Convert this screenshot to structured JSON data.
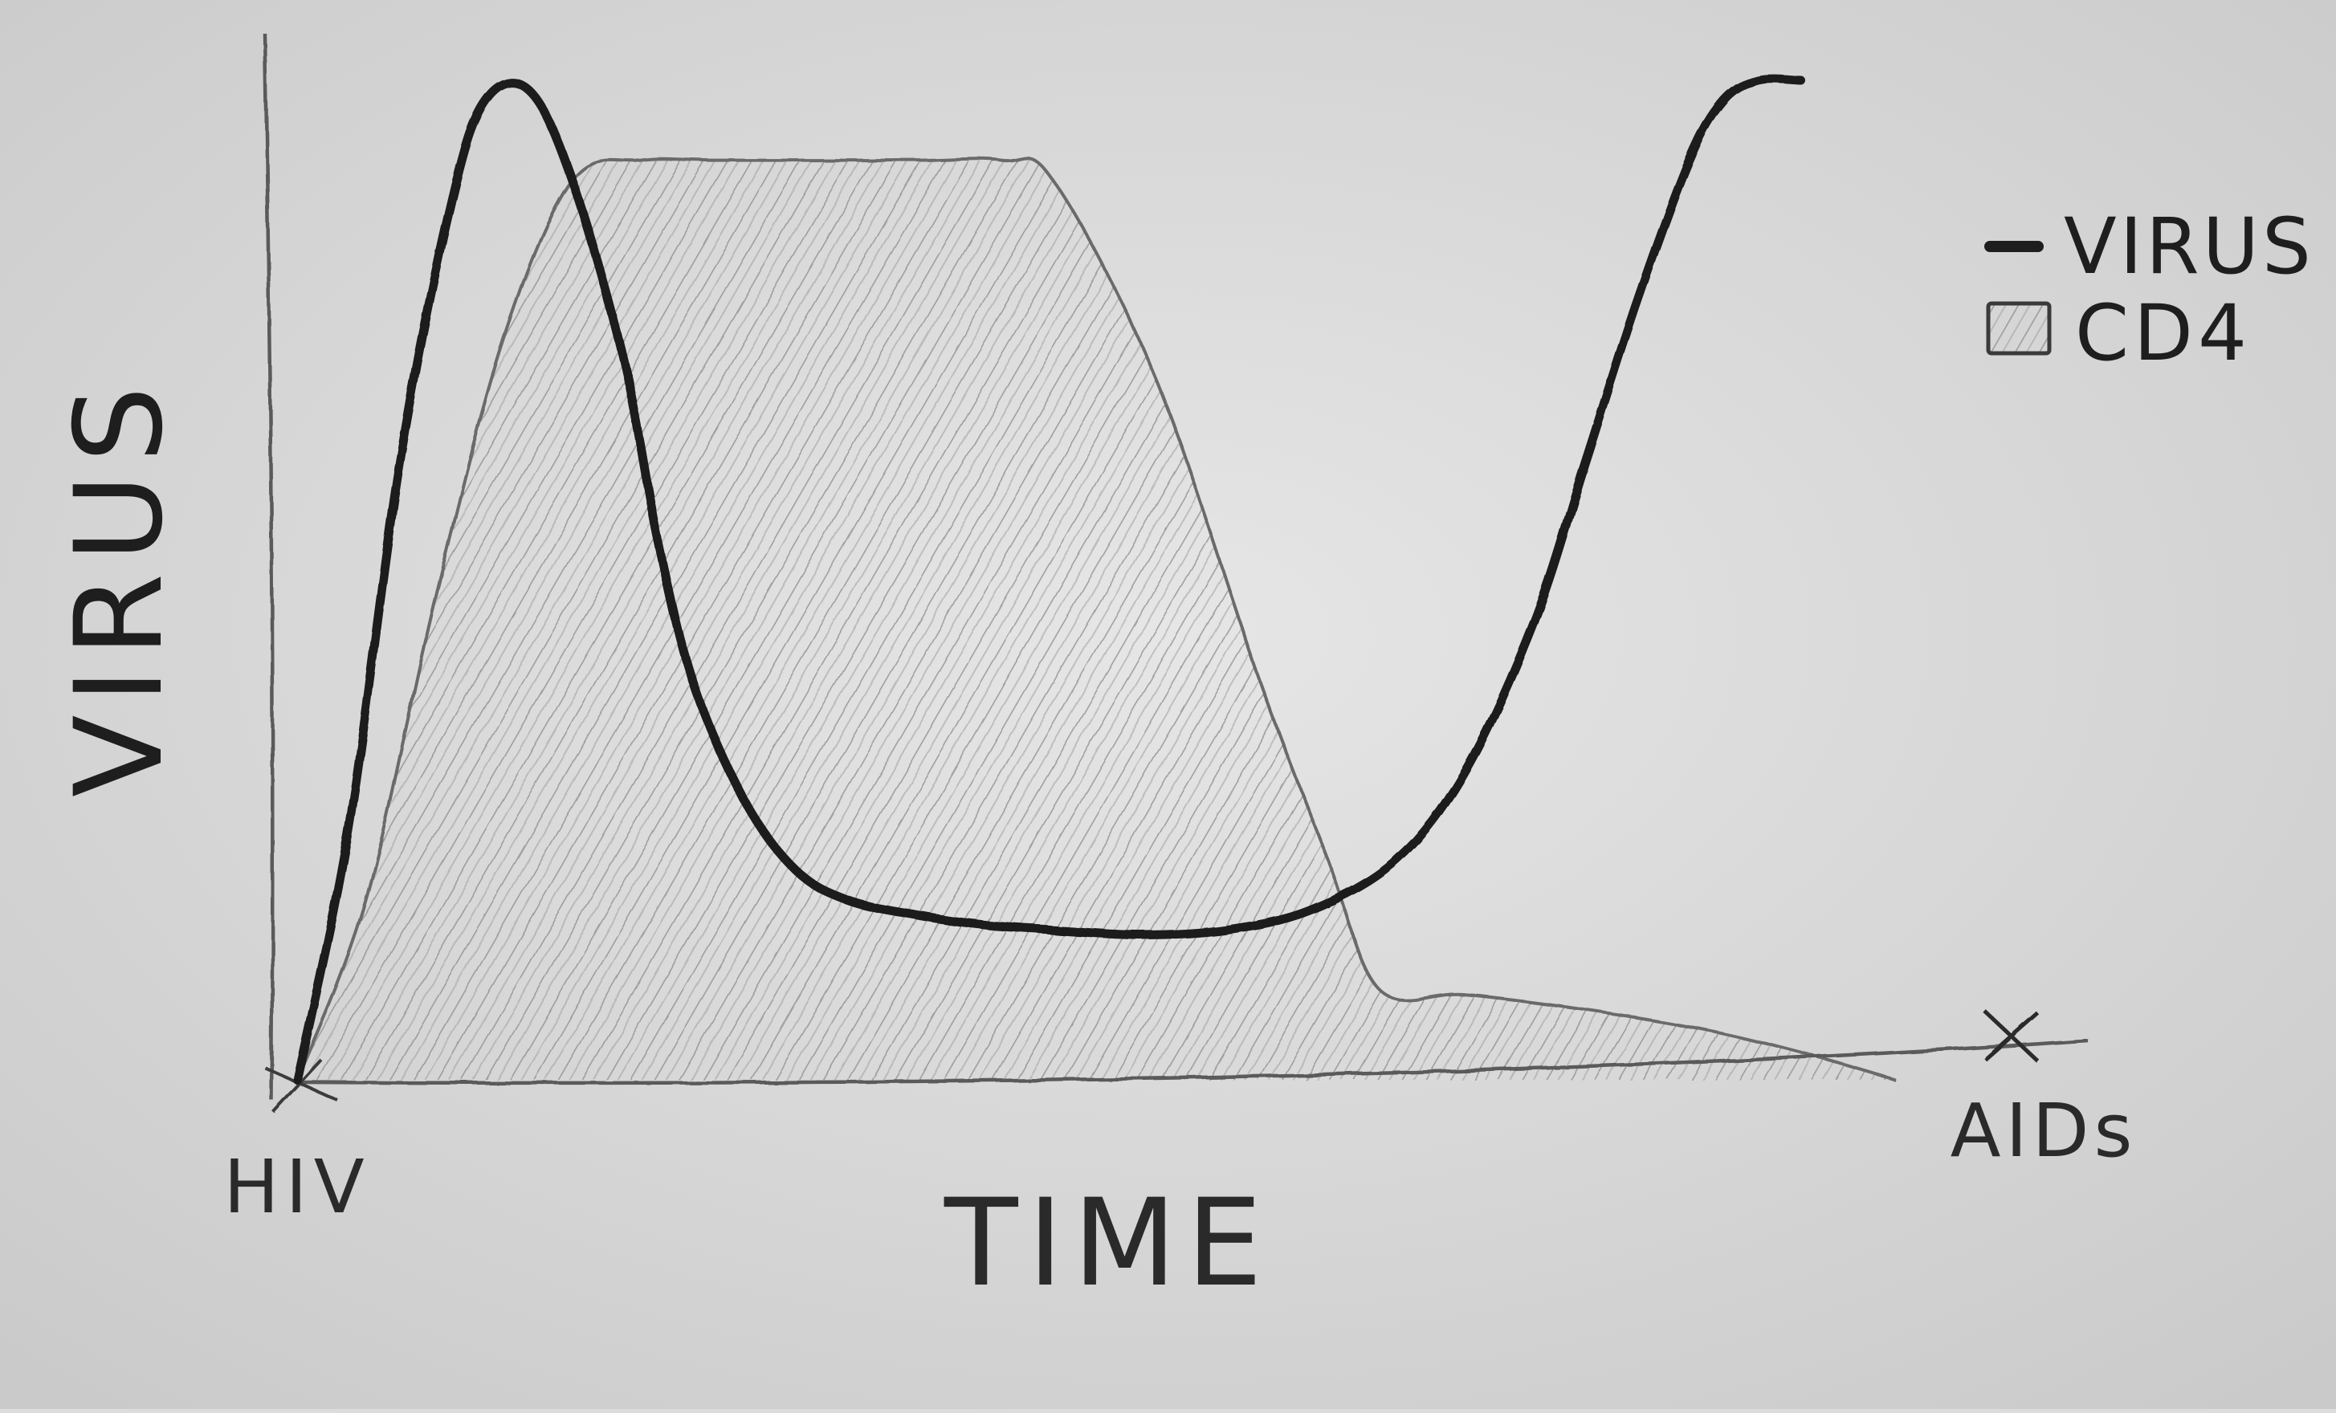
{
  "colors": {
    "paper": "#e2e2e2",
    "ink": "#1e1e1e",
    "pencil": "#6a6a6a",
    "hatch": "#8a8a8a"
  },
  "chart_data": {
    "type": "area",
    "title": "",
    "xlabel": "TIME",
    "ylabel": "VIRUS",
    "x_start_label": "HIV",
    "x_end_label": "AIDs",
    "xlim": [
      0,
      100
    ],
    "ylim": [
      0,
      100
    ],
    "grid": false,
    "legend_position": "top-right",
    "legend": [
      {
        "label": "VIRUS",
        "swatch": "line"
      },
      {
        "label": "CD4",
        "swatch": "hatched-box"
      }
    ],
    "series": [
      {
        "name": "VIRUS",
        "style": "line",
        "x": [
          0,
          3,
          6,
          9,
          11,
          13.5,
          16,
          19,
          21,
          23,
          26,
          29,
          32,
          36,
          40,
          44,
          49,
          54,
          59,
          64,
          68,
          72,
          75,
          78,
          81,
          83,
          85,
          87.5
        ],
        "y": [
          0,
          25,
          62,
          88,
          98,
          99,
          90,
          72,
          54,
          40,
          28,
          21,
          18,
          16.5,
          15.5,
          15,
          14.5,
          15,
          17,
          22,
          31,
          46,
          62,
          78,
          92,
          98,
          100,
          100
        ]
      },
      {
        "name": "CD4",
        "style": "hatched-area",
        "x": [
          0,
          4,
          8,
          12,
          16,
          20,
          24,
          30,
          36,
          41,
          44,
          50,
          56,
          60,
          63,
          68,
          75,
          82,
          88,
          93
        ],
        "y": [
          0,
          18,
          48,
          74,
          90,
          92,
          92,
          92,
          92,
          92,
          90,
          70,
          40,
          22,
          9,
          8.5,
          7,
          5,
          2.5,
          0
        ]
      }
    ]
  }
}
